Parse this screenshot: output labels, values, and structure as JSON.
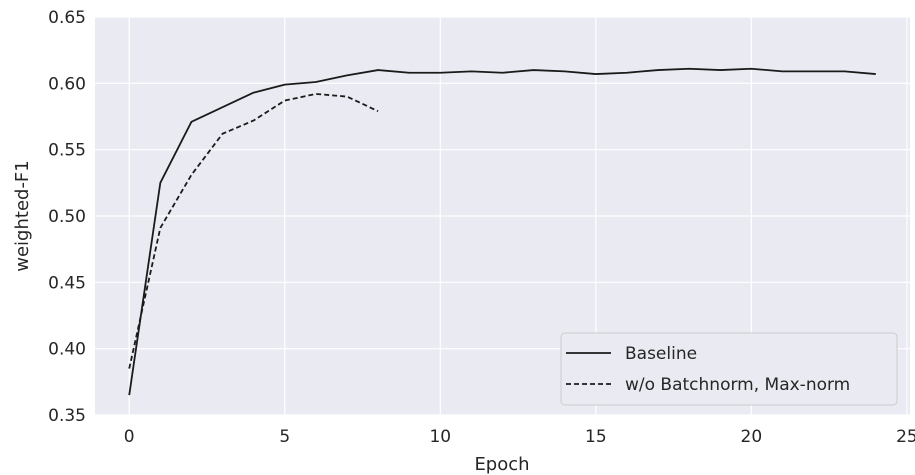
{
  "chart_data": {
    "type": "line",
    "title": "",
    "xlabel": "Epoch",
    "ylabel": "weighted-F1",
    "xlim": [
      -1.1,
      25.1
    ],
    "ylim": [
      0.35,
      0.65
    ],
    "xticks": [
      0,
      5,
      10,
      15,
      20,
      25
    ],
    "yticks": [
      0.35,
      0.4,
      0.45,
      0.5,
      0.55,
      0.6,
      0.65
    ],
    "grid": true,
    "background": "#eaeaf2",
    "grid_color": "#ffffff",
    "legend_position": "bottom-right",
    "series": [
      {
        "name": "Baseline",
        "style": "solid",
        "color": "#1a1a1a",
        "x": [
          0,
          1,
          2,
          3,
          4,
          5,
          6,
          7,
          8,
          9,
          10,
          11,
          12,
          13,
          14,
          15,
          16,
          17,
          18,
          19,
          20,
          21,
          22,
          23,
          24
        ],
        "y": [
          0.365,
          0.525,
          0.571,
          0.582,
          0.593,
          0.599,
          0.601,
          0.606,
          0.61,
          0.608,
          0.608,
          0.609,
          0.608,
          0.61,
          0.609,
          0.607,
          0.608,
          0.61,
          0.611,
          0.61,
          0.611,
          0.609,
          0.609,
          0.609,
          0.607
        ]
      },
      {
        "name": "w/o Batchnorm, Max-norm",
        "style": "dashed",
        "color": "#1a1a1a",
        "x": [
          0,
          1,
          2,
          3,
          4,
          5,
          6,
          7,
          8
        ],
        "y": [
          0.385,
          0.491,
          0.531,
          0.562,
          0.572,
          0.587,
          0.592,
          0.59,
          0.579
        ]
      }
    ]
  }
}
